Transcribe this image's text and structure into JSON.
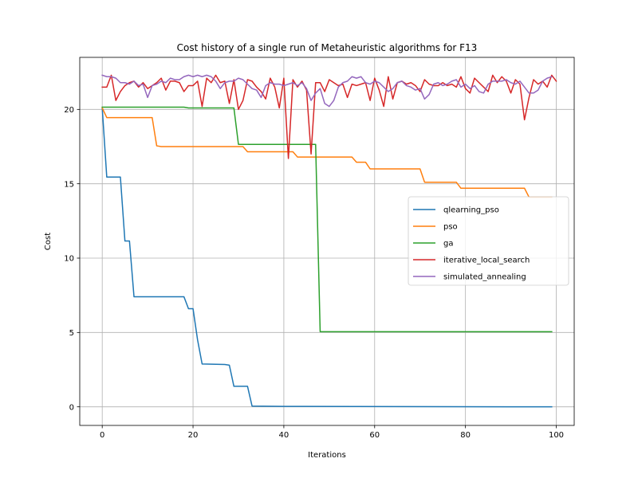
{
  "chart_data": {
    "type": "line",
    "title": "Cost history of a single run of Metaheuristic algorithms for F13",
    "xlabel": "Iterations",
    "ylabel": "Cost",
    "xlim": [
      -4.95,
      103.95
    ],
    "ylim": [
      -1.25,
      23.5
    ],
    "xticks": [
      0,
      20,
      40,
      60,
      80,
      100
    ],
    "yticks": [
      0,
      5,
      10,
      15,
      20
    ],
    "grid": true,
    "legend_position": "center-right",
    "series": [
      {
        "name": "qlearning_pso",
        "color": "#1f77b4",
        "segments": [
          [
            0,
            20.1
          ],
          [
            1,
            15.45
          ],
          [
            4,
            15.45
          ],
          [
            5,
            11.15
          ],
          [
            6,
            11.15
          ],
          [
            7,
            7.4
          ],
          [
            18,
            7.4
          ],
          [
            19,
            6.6
          ],
          [
            20,
            6.6
          ],
          [
            21,
            4.5
          ],
          [
            22,
            2.88
          ],
          [
            27,
            2.85
          ],
          [
            28,
            2.8
          ],
          [
            29,
            1.38
          ],
          [
            32,
            1.38
          ],
          [
            33,
            0.05
          ],
          [
            40,
            0.03
          ],
          [
            99,
            0.0
          ]
        ]
      },
      {
        "name": "pso",
        "color": "#ff7f0e",
        "segments": [
          [
            0,
            20.1
          ],
          [
            1,
            19.45
          ],
          [
            11,
            19.45
          ],
          [
            12,
            17.55
          ],
          [
            13,
            17.5
          ],
          [
            31,
            17.5
          ],
          [
            32,
            17.15
          ],
          [
            42,
            17.15
          ],
          [
            43,
            16.8
          ],
          [
            55,
            16.8
          ],
          [
            56,
            16.45
          ],
          [
            58,
            16.45
          ],
          [
            59,
            16.0
          ],
          [
            70,
            16.0
          ],
          [
            71,
            15.1
          ],
          [
            78,
            15.1
          ],
          [
            79,
            14.7
          ],
          [
            93,
            14.7
          ],
          [
            94,
            14.1
          ],
          [
            99,
            14.1
          ]
        ]
      },
      {
        "name": "ga",
        "color": "#2ca02c",
        "segments": [
          [
            0,
            20.15
          ],
          [
            18,
            20.15
          ],
          [
            19,
            20.1
          ],
          [
            29,
            20.1
          ],
          [
            30,
            17.65
          ],
          [
            47,
            17.65
          ],
          [
            48,
            5.05
          ],
          [
            99,
            5.05
          ]
        ]
      },
      {
        "name": "iterative_local_search",
        "color": "#d62728",
        "segments": [
          [
            0,
            21.5
          ],
          [
            1,
            21.5
          ],
          [
            2,
            22.3
          ],
          [
            3,
            20.6
          ],
          [
            4,
            21.2
          ],
          [
            5,
            21.6
          ],
          [
            6,
            21.8
          ],
          [
            7,
            21.9
          ],
          [
            8,
            21.5
          ],
          [
            9,
            21.8
          ],
          [
            10,
            21.4
          ],
          [
            11,
            21.6
          ],
          [
            12,
            21.8
          ],
          [
            13,
            22.1
          ],
          [
            14,
            21.3
          ],
          [
            15,
            21.9
          ],
          [
            16,
            21.9
          ],
          [
            17,
            21.8
          ],
          [
            18,
            21.2
          ],
          [
            19,
            21.6
          ],
          [
            20,
            21.6
          ],
          [
            21,
            21.9
          ],
          [
            22,
            20.2
          ],
          [
            23,
            22.1
          ],
          [
            24,
            21.8
          ],
          [
            25,
            22.3
          ],
          [
            26,
            21.8
          ],
          [
            27,
            21.9
          ],
          [
            28,
            20.4
          ],
          [
            29,
            22.0
          ],
          [
            30,
            20.0
          ],
          [
            31,
            20.6
          ],
          [
            32,
            22.0
          ],
          [
            33,
            21.9
          ],
          [
            34,
            21.5
          ],
          [
            35,
            21.2
          ],
          [
            36,
            20.7
          ],
          [
            37,
            22.1
          ],
          [
            38,
            21.5
          ],
          [
            39,
            20.1
          ],
          [
            40,
            22.1
          ],
          [
            41,
            16.7
          ],
          [
            42,
            22.0
          ],
          [
            43,
            21.5
          ],
          [
            44,
            21.9
          ],
          [
            45,
            21.3
          ],
          [
            46,
            17.0
          ],
          [
            47,
            21.8
          ],
          [
            48,
            21.8
          ],
          [
            49,
            21.2
          ],
          [
            50,
            22.0
          ],
          [
            51,
            21.8
          ],
          [
            52,
            21.6
          ],
          [
            53,
            21.7
          ],
          [
            54,
            20.8
          ],
          [
            55,
            21.7
          ],
          [
            56,
            21.6
          ],
          [
            57,
            21.7
          ],
          [
            58,
            21.8
          ],
          [
            59,
            20.6
          ],
          [
            60,
            22.1
          ],
          [
            61,
            21.3
          ],
          [
            62,
            20.2
          ],
          [
            63,
            22.2
          ],
          [
            64,
            20.7
          ],
          [
            65,
            21.8
          ],
          [
            66,
            21.9
          ],
          [
            67,
            21.7
          ],
          [
            68,
            21.8
          ],
          [
            69,
            21.6
          ],
          [
            70,
            21.2
          ],
          [
            71,
            22.0
          ],
          [
            72,
            21.7
          ],
          [
            73,
            21.6
          ],
          [
            74,
            21.6
          ],
          [
            75,
            21.8
          ],
          [
            76,
            21.6
          ],
          [
            77,
            21.7
          ],
          [
            78,
            21.5
          ],
          [
            79,
            22.2
          ],
          [
            80,
            21.4
          ],
          [
            81,
            21.1
          ],
          [
            82,
            22.1
          ],
          [
            83,
            21.8
          ],
          [
            84,
            21.5
          ],
          [
            85,
            21.2
          ],
          [
            86,
            22.3
          ],
          [
            87,
            21.8
          ],
          [
            88,
            22.2
          ],
          [
            89,
            21.9
          ],
          [
            90,
            21.1
          ],
          [
            91,
            22.0
          ],
          [
            92,
            21.7
          ],
          [
            93,
            19.3
          ],
          [
            94,
            20.8
          ],
          [
            95,
            22.0
          ],
          [
            96,
            21.7
          ],
          [
            97,
            21.9
          ],
          [
            98,
            21.5
          ],
          [
            99,
            22.3
          ],
          [
            100,
            21.9
          ]
        ]
      },
      {
        "name": "simulated_annealing",
        "color": "#9467bd",
        "segments": [
          [
            0,
            22.3
          ],
          [
            1,
            22.2
          ],
          [
            2,
            22.2
          ],
          [
            3,
            22.1
          ],
          [
            4,
            21.8
          ],
          [
            5,
            21.8
          ],
          [
            6,
            21.7
          ],
          [
            7,
            21.9
          ],
          [
            8,
            21.6
          ],
          [
            9,
            21.7
          ],
          [
            10,
            20.8
          ],
          [
            11,
            21.6
          ],
          [
            12,
            21.7
          ],
          [
            13,
            21.9
          ],
          [
            14,
            21.8
          ],
          [
            15,
            22.1
          ],
          [
            16,
            22.0
          ],
          [
            17,
            22.0
          ],
          [
            18,
            22.2
          ],
          [
            19,
            22.3
          ],
          [
            20,
            22.2
          ],
          [
            21,
            22.3
          ],
          [
            22,
            22.2
          ],
          [
            23,
            22.3
          ],
          [
            24,
            22.2
          ],
          [
            25,
            21.9
          ],
          [
            26,
            21.4
          ],
          [
            27,
            21.8
          ],
          [
            28,
            21.9
          ],
          [
            29,
            21.9
          ],
          [
            30,
            22.1
          ],
          [
            31,
            22.0
          ],
          [
            32,
            21.7
          ],
          [
            33,
            21.4
          ],
          [
            34,
            21.3
          ],
          [
            35,
            20.8
          ],
          [
            36,
            21.6
          ],
          [
            37,
            21.8
          ],
          [
            38,
            21.7
          ],
          [
            39,
            21.7
          ],
          [
            40,
            21.6
          ],
          [
            41,
            21.7
          ],
          [
            42,
            21.8
          ],
          [
            43,
            21.6
          ],
          [
            44,
            21.8
          ],
          [
            45,
            21.4
          ],
          [
            46,
            20.6
          ],
          [
            47,
            21.1
          ],
          [
            48,
            21.4
          ],
          [
            49,
            20.4
          ],
          [
            50,
            20.2
          ],
          [
            51,
            20.6
          ],
          [
            52,
            21.5
          ],
          [
            53,
            21.8
          ],
          [
            54,
            21.9
          ],
          [
            55,
            22.2
          ],
          [
            56,
            22.1
          ],
          [
            57,
            22.2
          ],
          [
            58,
            21.8
          ],
          [
            59,
            21.7
          ],
          [
            60,
            21.9
          ],
          [
            61,
            21.8
          ],
          [
            62,
            21.5
          ],
          [
            63,
            21.2
          ],
          [
            64,
            21.4
          ],
          [
            65,
            21.8
          ],
          [
            66,
            21.9
          ],
          [
            67,
            21.6
          ],
          [
            68,
            21.5
          ],
          [
            69,
            21.3
          ],
          [
            70,
            21.4
          ],
          [
            71,
            20.7
          ],
          [
            72,
            21.0
          ],
          [
            73,
            21.7
          ],
          [
            74,
            21.8
          ],
          [
            75,
            21.6
          ],
          [
            76,
            21.7
          ],
          [
            77,
            21.9
          ],
          [
            78,
            22.0
          ],
          [
            79,
            21.5
          ],
          [
            80,
            21.7
          ],
          [
            81,
            21.4
          ],
          [
            82,
            21.6
          ],
          [
            83,
            21.2
          ],
          [
            84,
            21.1
          ],
          [
            85,
            21.7
          ],
          [
            86,
            21.9
          ],
          [
            87,
            21.9
          ],
          [
            88,
            21.9
          ],
          [
            89,
            22.0
          ],
          [
            90,
            21.8
          ],
          [
            91,
            21.7
          ],
          [
            92,
            21.9
          ],
          [
            93,
            21.5
          ],
          [
            94,
            21.1
          ],
          [
            95,
            21.1
          ],
          [
            96,
            21.3
          ],
          [
            97,
            21.9
          ],
          [
            98,
            22.1
          ],
          [
            99,
            22.2
          ]
        ]
      }
    ]
  }
}
